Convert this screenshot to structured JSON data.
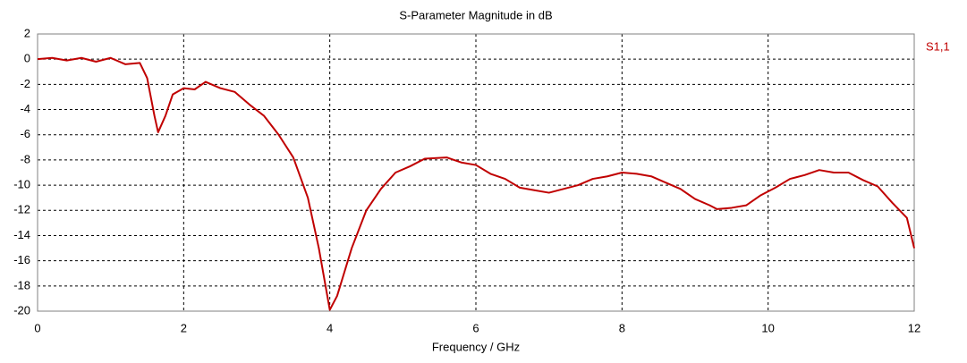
{
  "chart_data": {
    "type": "line",
    "title": "S-Parameter Magnitude in dB",
    "xlabel": "Frequency / GHz",
    "xlim": [
      0,
      12
    ],
    "xticks": [
      0,
      2,
      4,
      6,
      8,
      10,
      12
    ],
    "ylim": [
      -20,
      2
    ],
    "yticks": [
      -20,
      -18,
      -16,
      -14,
      -12,
      -10,
      -8,
      -6,
      -4,
      -2,
      0,
      2
    ],
    "grid": true,
    "legend": "right",
    "series": [
      {
        "name": "S1,1",
        "color": "#c00000",
        "x": [
          0,
          0.2,
          0.4,
          0.6,
          0.8,
          1.0,
          1.2,
          1.4,
          1.5,
          1.6,
          1.65,
          1.75,
          1.85,
          2.0,
          2.15,
          2.3,
          2.5,
          2.7,
          2.9,
          3.1,
          3.3,
          3.5,
          3.7,
          3.85,
          4.0,
          4.1,
          4.3,
          4.5,
          4.7,
          4.9,
          5.1,
          5.3,
          5.6,
          5.8,
          6.0,
          6.2,
          6.4,
          6.6,
          6.8,
          7.0,
          7.2,
          7.4,
          7.6,
          7.8,
          8.0,
          8.2,
          8.4,
          8.6,
          8.8,
          9.0,
          9.2,
          9.3,
          9.5,
          9.7,
          9.9,
          10.1,
          10.3,
          10.5,
          10.7,
          10.9,
          11.1,
          11.3,
          11.5,
          11.7,
          11.9,
          12.0
        ],
        "values": [
          0,
          0.1,
          -0.1,
          0.1,
          -0.2,
          0.1,
          -0.4,
          -0.3,
          -1.5,
          -4.5,
          -5.8,
          -4.5,
          -2.8,
          -2.3,
          -2.4,
          -1.8,
          -2.3,
          -2.6,
          -3.6,
          -4.5,
          -6.0,
          -7.8,
          -11,
          -15,
          -19.9,
          -18.8,
          -15,
          -12,
          -10.3,
          -9.0,
          -8.5,
          -7.9,
          -7.8,
          -8.2,
          -8.4,
          -9.1,
          -9.5,
          -10.2,
          -10.4,
          -10.6,
          -10.3,
          -10.0,
          -9.5,
          -9.3,
          -9.0,
          -9.1,
          -9.3,
          -9.8,
          -10.3,
          -11.1,
          -11.6,
          -11.9,
          -11.8,
          -11.6,
          -10.8,
          -10.2,
          -9.5,
          -9.2,
          -8.8,
          -9.0,
          -9.0,
          -9.6,
          -10.1,
          -11.4,
          -12.6,
          -15
        ]
      }
    ]
  }
}
